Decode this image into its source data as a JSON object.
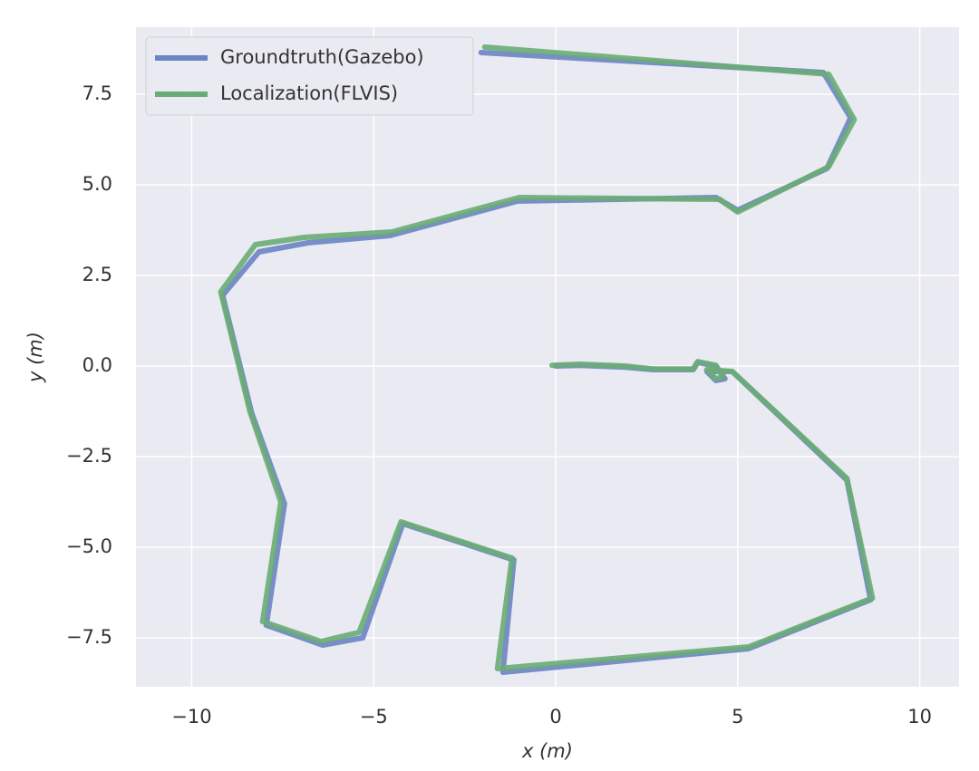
{
  "chart_data": {
    "type": "line",
    "x_label": "x (m)",
    "y_label": "y (m)",
    "xlim": [
      -11.53,
      11.08
    ],
    "ylim": [
      -8.85,
      9.35
    ],
    "xticks": [
      {
        "value": -10,
        "label": "−10"
      },
      {
        "value": -5,
        "label": "−5"
      },
      0,
      5,
      10
    ],
    "yticks": [
      {
        "value": -7.5,
        "label": "−7.5"
      },
      {
        "value": -5,
        "label": "−5.0"
      },
      {
        "value": -2.5,
        "label": "−2.5"
      },
      {
        "value": 0,
        "label": "0.0"
      },
      2.5,
      {
        "value": 5,
        "label": "5.0"
      },
      7.5
    ],
    "grid": true,
    "legend": "upper left",
    "series": [
      {
        "name": "Groundtruth(Gazebo)",
        "color": "#6a84c4",
        "x": [
          0,
          0.67,
          1.9,
          2.67,
          3.78,
          3.9,
          4.4,
          4.65,
          4.4,
          4.15,
          4.85,
          8.0,
          8.65,
          5.3,
          -1.45,
          -1.15,
          -4.2,
          -5.3,
          -6.4,
          -7.95,
          -7.45,
          -8.35,
          -9.15,
          -8.15,
          -6.8,
          -4.55,
          -1.05,
          4.4,
          5.0,
          7.45,
          8.1,
          7.35,
          -2.05
        ],
        "values": [
          0,
          0.02,
          -0.03,
          -0.1,
          -0.1,
          0.1,
          0,
          -0.35,
          -0.4,
          -0.15,
          -0.15,
          -3.15,
          -6.45,
          -7.8,
          -8.45,
          -5.35,
          -4.35,
          -7.5,
          -7.7,
          -7.15,
          -3.8,
          -1.3,
          1.95,
          3.15,
          3.4,
          3.6,
          4.55,
          4.65,
          4.3,
          5.45,
          6.85,
          8.1,
          8.65
        ]
      },
      {
        "name": "Localization(FLVIS)",
        "color": "#6aac74",
        "x": [
          -0.1,
          0.67,
          1.9,
          2.67,
          3.78,
          3.9,
          4.4,
          4.6,
          4.4,
          4.15,
          4.85,
          8.0,
          8.7,
          5.3,
          -1.6,
          -1.2,
          -4.25,
          -5.4,
          -6.45,
          -8.05,
          -7.55,
          -8.4,
          -9.2,
          -8.25,
          -6.9,
          -4.5,
          -1.0,
          4.5,
          5.0,
          7.5,
          8.2,
          7.5,
          -1.95
        ],
        "values": [
          0.02,
          0.05,
          0.0,
          -0.08,
          -0.08,
          0.12,
          0.02,
          -0.3,
          -0.35,
          -0.1,
          -0.15,
          -3.1,
          -6.4,
          -7.75,
          -8.35,
          -5.3,
          -4.3,
          -7.35,
          -7.6,
          -7.05,
          -3.75,
          -1.25,
          2.05,
          3.35,
          3.55,
          3.7,
          4.65,
          4.6,
          4.25,
          5.5,
          6.8,
          8.05,
          8.8
        ]
      }
    ]
  }
}
